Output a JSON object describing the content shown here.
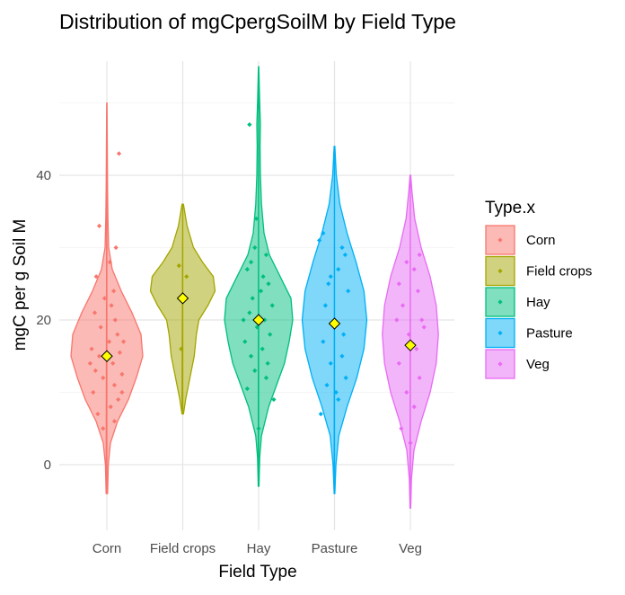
{
  "chart_data": {
    "type": "violin",
    "title": "Distribution of mgCpergSoilM by Field Type",
    "xlabel": "Field Type",
    "ylabel": "mgC per g Soil M",
    "categories": [
      "Corn",
      "Field crops",
      "Hay",
      "Pasture",
      "Veg"
    ],
    "ylim": [
      -9,
      58
    ],
    "yticks": [
      0,
      20,
      40
    ],
    "grid": true,
    "legend": {
      "title": "Type.x",
      "placement": "right",
      "entries": [
        "Corn",
        "Field crops",
        "Hay",
        "Pasture",
        "Veg"
      ]
    },
    "colors": {
      "Corn": "#F8766D",
      "Field crops": "#A3A500",
      "Hay": "#00BF7D",
      "Pasture": "#00B0F6",
      "Veg": "#E76BF3",
      "mean_marker": "#FFFF00"
    },
    "series": [
      {
        "name": "Corn",
        "mean": 15,
        "density": [
          [
            -4,
            0.02
          ],
          [
            0,
            0.04
          ],
          [
            3,
            0.1
          ],
          [
            6,
            0.3
          ],
          [
            9,
            0.6
          ],
          [
            12,
            0.82
          ],
          [
            15,
            1.0
          ],
          [
            18,
            0.95
          ],
          [
            21,
            0.7
          ],
          [
            24,
            0.4
          ],
          [
            27,
            0.15
          ],
          [
            30,
            0.05
          ],
          [
            34,
            0.03
          ],
          [
            38,
            0.02
          ],
          [
            42,
            0.015
          ],
          [
            46,
            0.01
          ],
          [
            50,
            0.005
          ]
        ],
        "points": [
          [
            -0.12,
            7
          ],
          [
            0.05,
            8
          ],
          [
            0.15,
            9
          ],
          [
            -0.18,
            10
          ],
          [
            0.1,
            11
          ],
          [
            -0.05,
            12
          ],
          [
            0.2,
            12.5
          ],
          [
            -0.15,
            13
          ],
          [
            0.08,
            14
          ],
          [
            -0.1,
            15
          ],
          [
            0.17,
            15.5
          ],
          [
            -0.2,
            16
          ],
          [
            0.03,
            17
          ],
          [
            0.14,
            18
          ],
          [
            -0.08,
            19
          ],
          [
            0.11,
            20
          ],
          [
            -0.16,
            21
          ],
          [
            0.06,
            22
          ],
          [
            -0.03,
            23
          ],
          [
            0.09,
            24
          ],
          [
            -0.14,
            26
          ],
          [
            0.04,
            28
          ],
          [
            0.12,
            30
          ],
          [
            -0.1,
            33
          ],
          [
            0.16,
            43
          ],
          [
            -0.05,
            5
          ],
          [
            0.1,
            6
          ],
          [
            0.2,
            10
          ],
          [
            -0.22,
            14
          ],
          [
            0.22,
            17
          ]
        ]
      },
      {
        "name": "Field crops",
        "mean": 23,
        "density": [
          [
            7,
            0.02
          ],
          [
            9,
            0.08
          ],
          [
            12,
            0.2
          ],
          [
            15,
            0.32
          ],
          [
            18,
            0.38
          ],
          [
            20,
            0.45
          ],
          [
            22,
            0.7
          ],
          [
            24,
            0.9
          ],
          [
            26,
            0.85
          ],
          [
            28,
            0.55
          ],
          [
            30,
            0.3
          ],
          [
            33,
            0.12
          ],
          [
            36,
            0.02
          ]
        ],
        "points": [
          [
            -0.05,
            27.5
          ],
          [
            0.05,
            26
          ],
          [
            -0.02,
            16
          ]
        ]
      },
      {
        "name": "Hay",
        "mean": 20,
        "density": [
          [
            -3,
            0.01
          ],
          [
            1,
            0.03
          ],
          [
            4,
            0.08
          ],
          [
            8,
            0.28
          ],
          [
            11,
            0.5
          ],
          [
            14,
            0.72
          ],
          [
            17,
            0.85
          ],
          [
            20,
            0.95
          ],
          [
            23,
            0.9
          ],
          [
            26,
            0.6
          ],
          [
            29,
            0.3
          ],
          [
            32,
            0.15
          ],
          [
            36,
            0.08
          ],
          [
            40,
            0.05
          ],
          [
            44,
            0.04
          ],
          [
            47,
            0.05
          ],
          [
            50,
            0.03
          ],
          [
            53,
            0.015
          ],
          [
            55,
            0.005
          ]
        ],
        "points": [
          [
            -0.15,
            10.5
          ],
          [
            0.1,
            12
          ],
          [
            -0.05,
            13
          ],
          [
            0.12,
            14
          ],
          [
            -0.1,
            15
          ],
          [
            0.05,
            16
          ],
          [
            -0.18,
            17
          ],
          [
            0.15,
            18
          ],
          [
            -0.02,
            19
          ],
          [
            0.08,
            20
          ],
          [
            -0.12,
            21
          ],
          [
            0.18,
            22
          ],
          [
            -0.08,
            23
          ],
          [
            0.03,
            24
          ],
          [
            0.13,
            25
          ],
          [
            -0.15,
            27
          ],
          [
            0.1,
            29
          ],
          [
            -0.05,
            30
          ],
          [
            -0.03,
            34
          ],
          [
            -0.12,
            47
          ],
          [
            0.2,
            9
          ],
          [
            0.0,
            5
          ],
          [
            -0.2,
            20
          ],
          [
            0.06,
            26
          ],
          [
            -0.1,
            28
          ]
        ]
      },
      {
        "name": "Pasture",
        "mean": 19.5,
        "density": [
          [
            -4,
            0.01
          ],
          [
            0,
            0.04
          ],
          [
            4,
            0.12
          ],
          [
            8,
            0.35
          ],
          [
            12,
            0.62
          ],
          [
            16,
            0.82
          ],
          [
            20,
            0.9
          ],
          [
            24,
            0.82
          ],
          [
            28,
            0.6
          ],
          [
            32,
            0.35
          ],
          [
            36,
            0.15
          ],
          [
            40,
            0.05
          ],
          [
            44,
            0.01
          ]
        ],
        "points": [
          [
            -0.18,
            7
          ],
          [
            0.05,
            9
          ],
          [
            -0.1,
            11
          ],
          [
            0.15,
            12
          ],
          [
            -0.05,
            14
          ],
          [
            0.1,
            15
          ],
          [
            -0.15,
            17
          ],
          [
            0.12,
            18
          ],
          [
            0.0,
            20
          ],
          [
            -0.12,
            22
          ],
          [
            0.18,
            24
          ],
          [
            -0.08,
            25
          ],
          [
            0.05,
            27
          ],
          [
            0.14,
            29
          ],
          [
            -0.2,
            31
          ],
          [
            -0.15,
            32
          ],
          [
            0.1,
            30
          ],
          [
            -0.05,
            26
          ],
          [
            0.02,
            10
          ]
        ]
      },
      {
        "name": "Veg",
        "mean": 16.5,
        "density": [
          [
            -6,
            0.01
          ],
          [
            -2,
            0.03
          ],
          [
            2,
            0.1
          ],
          [
            6,
            0.3
          ],
          [
            10,
            0.55
          ],
          [
            14,
            0.72
          ],
          [
            18,
            0.78
          ],
          [
            22,
            0.72
          ],
          [
            26,
            0.55
          ],
          [
            30,
            0.3
          ],
          [
            34,
            0.12
          ],
          [
            38,
            0.04
          ],
          [
            40,
            0.01
          ]
        ],
        "points": [
          [
            -0.12,
            5
          ],
          [
            0.05,
            8
          ],
          [
            -0.05,
            10
          ],
          [
            0.12,
            12
          ],
          [
            -0.15,
            14
          ],
          [
            0.08,
            16
          ],
          [
            -0.02,
            18
          ],
          [
            0.15,
            20
          ],
          [
            -0.1,
            22
          ],
          [
            0.1,
            24
          ],
          [
            -0.15,
            25
          ],
          [
            0.05,
            27
          ],
          [
            0.12,
            29
          ],
          [
            -0.05,
            28
          ],
          [
            0.0,
            3
          ],
          [
            0.18,
            19
          ],
          [
            -0.18,
            20
          ]
        ]
      }
    ]
  }
}
